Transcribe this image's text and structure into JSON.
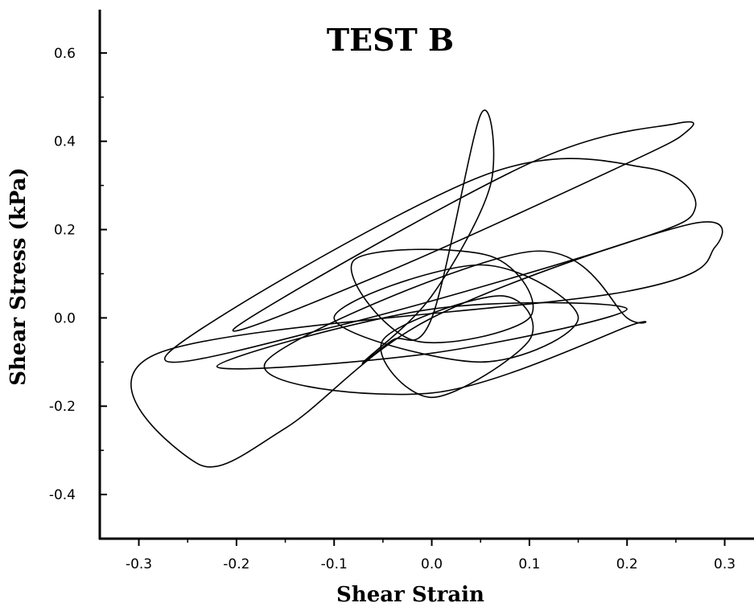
{
  "chart_data": {
    "type": "line",
    "title": "TEST B",
    "xlabel": "Shear Strain",
    "ylabel": "Shear Stress (kPa)",
    "xlim": [
      -0.34,
      0.33
    ],
    "ylim": [
      -0.5,
      0.68
    ],
    "x_ticks": [
      -0.3,
      -0.2,
      -0.1,
      0.0,
      0.1,
      0.2,
      0.3
    ],
    "x_tick_labels": [
      "-0.3",
      "-0.2",
      "-0.1",
      "0.0",
      "0.1",
      "0.2",
      "0.3"
    ],
    "y_ticks": [
      -0.4,
      -0.2,
      0.0,
      0.2,
      0.4,
      0.6
    ],
    "y_tick_labels": [
      "-0.4",
      "-0.2",
      "0.0",
      "0.2",
      "0.4",
      "0.6"
    ],
    "grid": false,
    "legend": "none",
    "line_color": "#000000",
    "series": [
      {
        "x": [
          0.0,
          0.26,
          0.29,
          0.2,
          -0.28,
          -0.24,
          -0.15,
          0.0
        ],
        "y": [
          0.0,
          0.21,
          0.16,
          0.06,
          -0.08,
          -0.33,
          -0.25,
          0.0
        ]
      },
      {
        "x": [
          0.0,
          0.05,
          0.06,
          0.0,
          -0.07,
          -0.04,
          0.0
        ],
        "y": [
          0.0,
          0.46,
          0.3,
          0.05,
          -0.1,
          -0.05,
          0.0
        ]
      },
      {
        "x": [
          -0.2,
          0.1,
          0.25,
          0.26,
          0.2,
          -0.05,
          -0.2
        ],
        "y": [
          -0.02,
          0.35,
          0.44,
          0.42,
          0.35,
          0.1,
          -0.02
        ]
      },
      {
        "x": [
          -0.27,
          0.05,
          0.22,
          0.27,
          0.2,
          -0.1,
          -0.27
        ],
        "y": [
          -0.08,
          0.32,
          0.34,
          0.25,
          0.17,
          -0.02,
          -0.08
        ]
      },
      {
        "x": [
          -0.17,
          0.1,
          0.2,
          0.2,
          0.0,
          -0.17
        ],
        "y": [
          -0.1,
          0.15,
          0.0,
          -0.02,
          -0.17,
          -0.1
        ]
      },
      {
        "x": [
          -0.1,
          0.05,
          0.15,
          0.05,
          -0.1
        ],
        "y": [
          0.0,
          0.12,
          0.0,
          -0.1,
          0.0
        ]
      },
      {
        "x": [
          -0.05,
          0.07,
          0.1,
          0.0,
          -0.05
        ],
        "y": [
          -0.05,
          0.05,
          -0.05,
          -0.18,
          -0.05
        ]
      },
      {
        "x": [
          -0.22,
          0.0,
          0.2,
          0.0,
          -0.22
        ],
        "y": [
          -0.11,
          0.02,
          0.02,
          -0.08,
          -0.11
        ]
      },
      {
        "x": [
          -0.08,
          0.06,
          0.1,
          -0.02,
          -0.08
        ],
        "y": [
          0.13,
          0.14,
          0.0,
          -0.05,
          0.13
        ]
      }
    ]
  }
}
